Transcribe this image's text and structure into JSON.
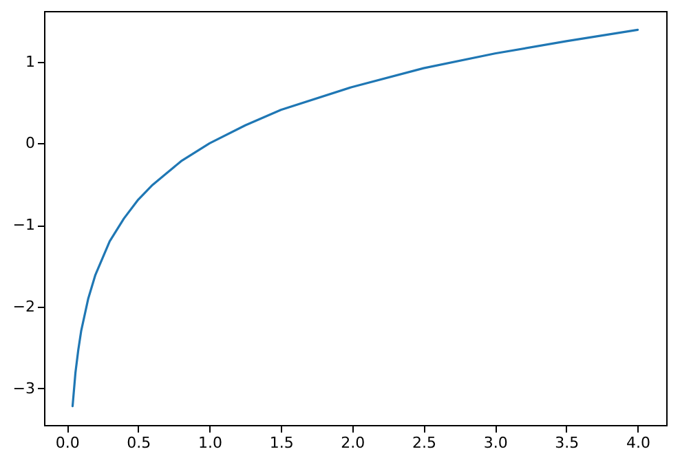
{
  "chart_data": {
    "type": "line",
    "x": [
      0.04,
      0.06,
      0.08,
      0.1,
      0.15,
      0.2,
      0.3,
      0.4,
      0.5,
      0.6,
      0.8,
      1.0,
      1.25,
      1.5,
      2.0,
      2.5,
      3.0,
      3.5,
      4.0
    ],
    "series": [
      {
        "color": "#1f77b4",
        "values": [
          -3.22,
          -2.81,
          -2.53,
          -2.3,
          -1.9,
          -1.61,
          -1.2,
          -0.92,
          -0.69,
          -0.51,
          -0.22,
          0,
          0.22,
          0.41,
          0.69,
          0.92,
          1.1,
          1.25,
          1.39
        ]
      }
    ],
    "xlim": [
      -0.16,
      4.2
    ],
    "ylim": [
      -3.45,
      1.62
    ],
    "xticks": [
      {
        "value": 0,
        "label": "0.0"
      },
      0.5,
      {
        "value": 1,
        "label": "1.0"
      },
      1.5,
      {
        "value": 2,
        "label": "2.0"
      },
      2.5,
      {
        "value": 3,
        "label": "3.0"
      },
      3.5,
      {
        "value": 4,
        "label": "4.0"
      }
    ],
    "yticks": [
      -3,
      -2,
      -1,
      0,
      1
    ],
    "grid": false,
    "marker": "none",
    "line_style": "solid"
  }
}
